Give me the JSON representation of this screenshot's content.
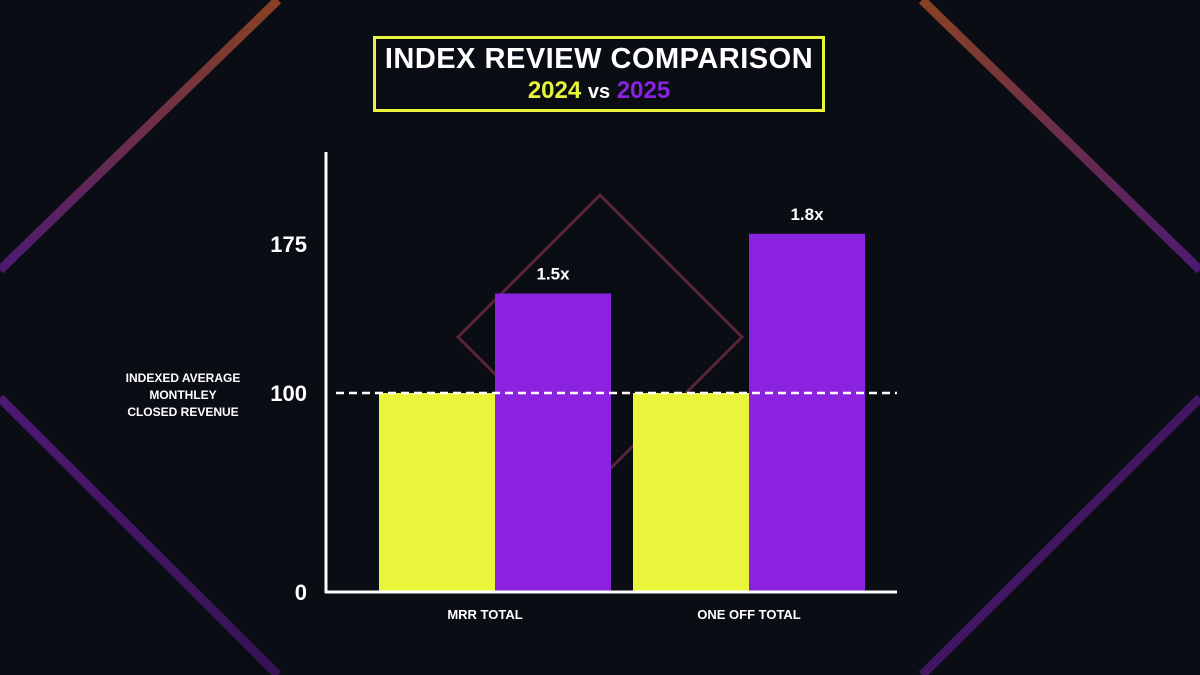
{
  "title": "INDEX REVIEW COMPARISON",
  "subtitle": {
    "year_a": "2024",
    "vs": "vs",
    "year_b": "2025"
  },
  "side_label": [
    "INDEXED AVERAGE",
    "MONTHLEY",
    "CLOSED REVENUE"
  ],
  "colors": {
    "background": "#0a0d14",
    "series_2024": "#e8f53a",
    "series_2025": "#8a22e0",
    "title_border": "#e8f53a",
    "text": "#ffffff"
  },
  "chart_data": {
    "type": "bar",
    "title": "INDEX REVIEW COMPARISON",
    "categories": [
      "MRR TOTAL",
      "ONE OFF TOTAL"
    ],
    "series": [
      {
        "name": "2024",
        "values": [
          100,
          100
        ]
      },
      {
        "name": "2025",
        "values": [
          150,
          180
        ]
      }
    ],
    "data_labels": [
      {
        "category": "MRR TOTAL",
        "series": "2025",
        "text": "1.5x"
      },
      {
        "category": "ONE OFF TOTAL",
        "series": "2025",
        "text": "1.8x"
      }
    ],
    "yticks": [
      0,
      100,
      175
    ],
    "ylim": [
      0,
      225
    ],
    "reference_line": {
      "value": 100,
      "style": "dashed"
    },
    "grid": false
  }
}
